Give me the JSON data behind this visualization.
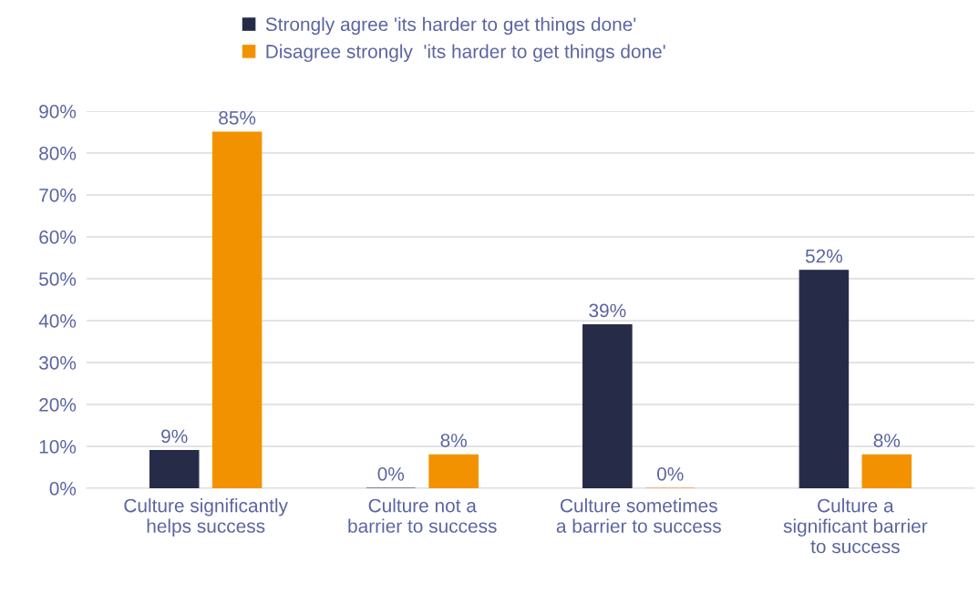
{
  "chart_data": {
    "type": "bar",
    "categories": [
      "Culture significantly\nhelps success",
      "Culture not a\nbarrier to success",
      "Culture sometimes\na barrier to success",
      "Culture a\nsignificant barrier\nto success"
    ],
    "series": [
      {
        "name": "Strongly agree 'its harder to get things done'",
        "color": "#262c48",
        "values": [
          9,
          0,
          39,
          52
        ],
        "value_labels": [
          "9%",
          "0%",
          "39%",
          "52%"
        ]
      },
      {
        "name": "Disagree strongly  'its harder to get things done'",
        "color": "#f39200",
        "values": [
          85,
          8,
          0,
          8
        ],
        "value_labels": [
          "85%",
          "8%",
          "0%",
          "8%"
        ]
      }
    ],
    "ylim": [
      0,
      90
    ],
    "yticks": [
      {
        "value": 0,
        "label": "0%"
      },
      {
        "value": 10,
        "label": "10%"
      },
      {
        "value": 20,
        "label": "20%"
      },
      {
        "value": 30,
        "label": "30%"
      },
      {
        "value": 40,
        "label": "40%"
      },
      {
        "value": 50,
        "label": "50%"
      },
      {
        "value": 60,
        "label": "60%"
      },
      {
        "value": 70,
        "label": "70%"
      },
      {
        "value": 80,
        "label": "80%"
      },
      {
        "value": 90,
        "label": "90%"
      }
    ],
    "grid": "y",
    "legend": "top"
  }
}
